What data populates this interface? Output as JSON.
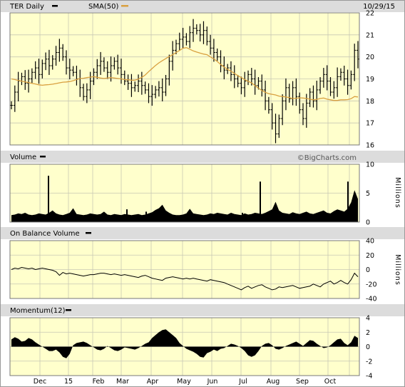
{
  "header": {
    "symbol_label": "TER Daily",
    "sma_label": "SMA(50)",
    "date": "10/29/15",
    "credit": "©BigCharts.com"
  },
  "colors": {
    "plot_bg": "#ffffcc",
    "header_bg": "#dcdcdc",
    "price": "#000000",
    "sma": "#d9a040",
    "fill": "#000000"
  },
  "x_labels": [
    "Dec",
    "15",
    "Feb",
    "Mar",
    "Apr",
    "May",
    "Jun",
    "Jul",
    "Aug",
    "Sep",
    "Oct"
  ],
  "chart_data": [
    {
      "type": "ohlc",
      "title": "TER Daily",
      "series": [
        {
          "name": "TER Daily",
          "legend_icon": "black-dash"
        },
        {
          "name": "SMA(50)",
          "legend_icon": "orange-dash"
        }
      ],
      "yticks": [
        16,
        17,
        18,
        19,
        20,
        21,
        22
      ],
      "ylim": [
        16,
        22
      ],
      "x_axis_labels": [
        "Dec",
        "15",
        "Feb",
        "Mar",
        "Apr",
        "May",
        "Jun",
        "Jul",
        "Aug",
        "Sep",
        "Oct"
      ],
      "close": [
        17.8,
        18.4,
        18.9,
        19.1,
        18.8,
        19.0,
        19.3,
        19.5,
        19.2,
        19.7,
        19.9,
        19.6,
        19.9,
        20.2,
        20.4,
        20.0,
        19.5,
        19.4,
        19.3,
        19.0,
        18.6,
        18.2,
        18.5,
        18.9,
        19.3,
        19.6,
        19.8,
        19.5,
        19.3,
        19.6,
        19.8,
        19.5,
        19.2,
        18.9,
        18.8,
        18.6,
        18.7,
        18.9,
        18.7,
        18.5,
        18.2,
        18.3,
        18.5,
        18.6,
        18.4,
        19.0,
        19.8,
        20.3,
        20.6,
        20.8,
        20.9,
        20.7,
        21.1,
        21.3,
        21.2,
        21.0,
        21.2,
        20.7,
        20.4,
        20.2,
        20.0,
        19.6,
        19.4,
        19.5,
        19.2,
        19.0,
        18.8,
        18.6,
        18.9,
        19.2,
        19.0,
        18.7,
        18.9,
        18.5,
        18.0,
        17.6,
        17.0,
        16.5,
        17.2,
        18.0,
        18.6,
        18.1,
        18.6,
        18.2,
        17.6,
        17.2,
        17.9,
        18.4,
        18.0,
        18.5,
        18.9,
        19.2,
        18.9,
        18.4,
        18.6,
        19.1,
        19.3,
        19.0,
        18.7,
        19.2,
        20.3,
        19.9
      ],
      "sma50": [
        19.0,
        18.97,
        18.93,
        18.9,
        18.86,
        18.83,
        18.8,
        18.77,
        18.73,
        18.71,
        18.73,
        18.74,
        18.76,
        18.79,
        18.82,
        18.85,
        18.86,
        18.88,
        18.92,
        18.97,
        19.02,
        19.03,
        19.06,
        19.08,
        19.1,
        19.07,
        19.04,
        19.02,
        19.04,
        19.06,
        19.04,
        19.02,
        19.0,
        18.97,
        18.96,
        18.94,
        18.94,
        18.99,
        19.07,
        19.18,
        19.33,
        19.47,
        19.61,
        19.73,
        19.83,
        19.92,
        20.02,
        20.1,
        20.2,
        20.29,
        20.39,
        20.42,
        20.35,
        20.27,
        20.22,
        20.17,
        20.13,
        20.1,
        20.0,
        19.91,
        19.79,
        19.66,
        19.54,
        19.43,
        19.35,
        19.25,
        19.15,
        19.06,
        18.97,
        18.89,
        18.82,
        18.7,
        18.58,
        18.47,
        18.39,
        18.33,
        18.3,
        18.27,
        18.22,
        18.2,
        18.18,
        18.15,
        18.11,
        18.12,
        18.14,
        18.13,
        18.11,
        18.08,
        18.05,
        18.07,
        18.11,
        18.13,
        18.08,
        18.05,
        18.02,
        18.02,
        18.05,
        18.05,
        18.06,
        18.1,
        18.2,
        18.18
      ]
    },
    {
      "type": "area",
      "title": "Volume",
      "series": [
        {
          "name": "Volume",
          "legend_icon": "black-dash"
        }
      ],
      "unit": "Millions",
      "yticks": [
        0,
        5,
        10
      ],
      "ylim": [
        0,
        10
      ],
      "values": [
        1.2,
        1.3,
        1.5,
        1.4,
        1.6,
        1.3,
        1.2,
        1.3,
        1.5,
        1.4,
        1.3,
        1.6,
        2.0,
        1.5,
        1.3,
        1.2,
        1.4,
        1.6,
        2.4,
        1.4,
        1.3,
        1.2,
        1.3,
        1.5,
        1.4,
        1.3,
        1.4,
        1.8,
        1.3,
        1.2,
        1.4,
        1.3,
        1.2,
        1.4,
        1.3,
        1.2,
        1.3,
        1.4,
        1.2,
        1.3,
        1.5,
        1.7,
        2.1,
        2.4,
        3.0,
        2.0,
        1.6,
        1.3,
        1.2,
        1.2,
        1.3,
        1.5,
        2.3,
        1.5,
        1.4,
        1.3,
        1.2,
        1.3,
        1.5,
        1.4,
        1.6,
        1.5,
        1.4,
        1.3,
        1.6,
        1.4,
        1.3,
        1.2,
        1.5,
        1.3,
        1.4,
        1.6,
        1.5,
        1.4,
        1.6,
        1.9,
        2.2,
        3.5,
        2.0,
        1.6,
        1.5,
        1.4,
        1.7,
        1.5,
        1.4,
        1.6,
        1.8,
        1.5,
        1.4,
        1.6,
        1.8,
        2.0,
        1.6,
        1.5,
        1.9,
        2.2,
        2.0,
        1.8,
        2.3,
        3.4,
        5.5,
        4.0
      ],
      "spikes": [
        {
          "at": 68,
          "value": 8.0
        },
        {
          "at": 169,
          "value": 1.2
        },
        {
          "at": 178,
          "value": 2.2
        },
        {
          "at": 205,
          "value": 1.8
        },
        {
          "at": 340,
          "value": 1.6
        },
        {
          "at": 365,
          "value": 7.0
        },
        {
          "at": 488,
          "value": 7.0
        }
      ]
    },
    {
      "type": "line",
      "title": "On Balance Volume",
      "series": [
        {
          "name": "On Balance Volume",
          "legend_icon": "black-dash"
        }
      ],
      "unit": "Millions",
      "yticks": [
        -40,
        -20,
        0,
        20,
        40
      ],
      "ylim": [
        -40,
        40
      ],
      "values": [
        0,
        2,
        1,
        3,
        2,
        1,
        2,
        0,
        1,
        2,
        1,
        0,
        -1,
        -3,
        -8,
        -4,
        -6,
        -5,
        -6,
        -7,
        -8,
        -9,
        -8,
        -7,
        -7,
        -6,
        -5,
        -5,
        -6,
        -7,
        -6,
        -7,
        -8,
        -7,
        -8,
        -9,
        -10,
        -11,
        -9,
        -8,
        -10,
        -12,
        -13,
        -14,
        -15,
        -12,
        -11,
        -10,
        -11,
        -12,
        -13,
        -12,
        -13,
        -12,
        -13,
        -14,
        -15,
        -16,
        -14,
        -15,
        -16,
        -17,
        -18,
        -20,
        -22,
        -24,
        -26,
        -28,
        -25,
        -23,
        -26,
        -24,
        -22,
        -21,
        -24,
        -26,
        -28,
        -27,
        -24,
        -25,
        -24,
        -23,
        -22,
        -24,
        -26,
        -25,
        -24,
        -23,
        -20,
        -22,
        -24,
        -20,
        -18,
        -16,
        -20,
        -18,
        -15,
        -18,
        -20,
        -14,
        -5,
        -10
      ]
    },
    {
      "type": "area",
      "title": "Momentum(12)",
      "series": [
        {
          "name": "Momentum(12)",
          "legend_icon": "black-dash"
        }
      ],
      "yticks": [
        -4,
        -2,
        0,
        2,
        4
      ],
      "ylim": [
        -4,
        4
      ],
      "values": [
        1.0,
        1.3,
        1.1,
        0.7,
        0.8,
        1.2,
        1.0,
        0.6,
        0.3,
        0.0,
        -0.3,
        -0.6,
        -0.6,
        -0.4,
        -0.8,
        -1.4,
        -1.6,
        -1.0,
        0.2,
        0.5,
        0.6,
        0.7,
        0.5,
        0.2,
        -0.1,
        -0.4,
        -0.5,
        -0.3,
        0.1,
        -0.2,
        -0.5,
        -0.6,
        -0.4,
        -0.1,
        -0.2,
        -0.3,
        -0.4,
        -0.2,
        0.1,
        0.4,
        0.6,
        1.2,
        1.6,
        2.0,
        2.3,
        2.4,
        2.0,
        1.6,
        1.2,
        0.5,
        0.1,
        -0.3,
        -0.5,
        -0.7,
        -1.0,
        -1.4,
        -1.5,
        -0.9,
        -0.7,
        -0.4,
        -0.6,
        -0.3,
        -0.2,
        0.1,
        0.4,
        0.3,
        0.1,
        -0.2,
        -0.6,
        -1.2,
        -1.4,
        -1.2,
        -0.6,
        0.1,
        0.4,
        0.5,
        0.2,
        -0.3,
        -0.4,
        -0.2,
        0.1,
        0.3,
        0.5,
        0.7,
        0.4,
        0.1,
        0.5,
        0.9,
        0.8,
        0.4,
        0.1,
        -0.2,
        -0.1,
        0.2,
        0.6,
        1.0,
        1.1,
        0.5,
        0.2,
        0.6,
        1.5,
        1.2
      ]
    }
  ]
}
